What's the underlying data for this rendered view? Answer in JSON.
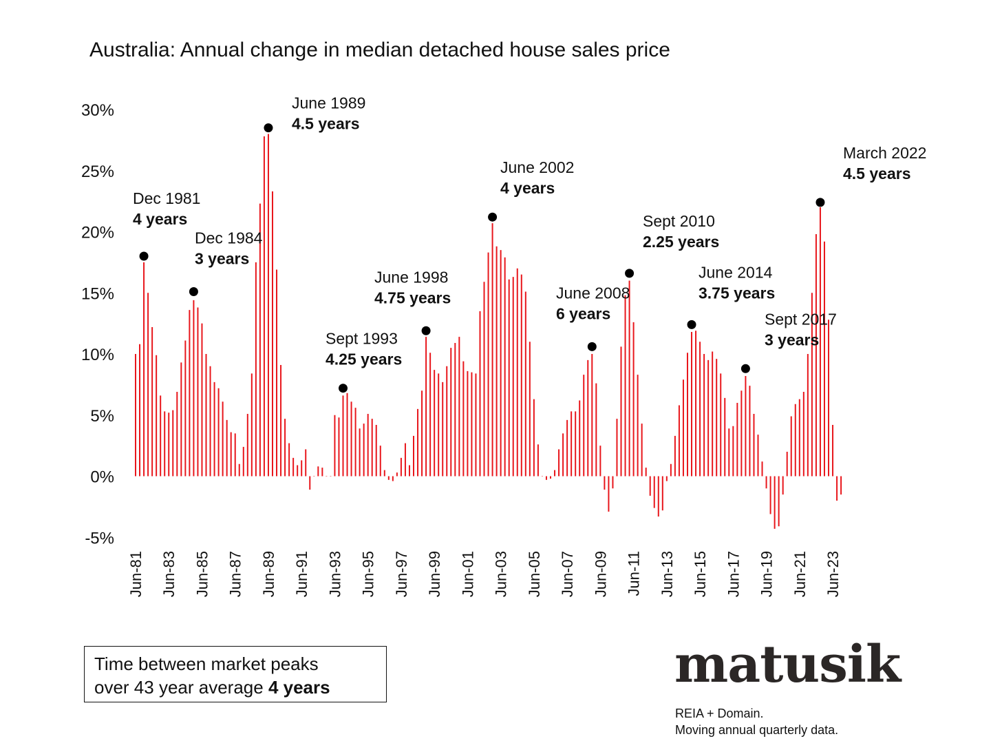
{
  "title": "Australia: Annual change in median detached house sales price",
  "note": {
    "line1": "Time between market peaks",
    "line2_prefix": "over 43 year average ",
    "line2_bold": "4 years"
  },
  "brand": "matusik",
  "source": {
    "line1": "REIA + Domain.",
    "line2": "Moving annual quarterly data."
  },
  "colors": {
    "bar": "#e8161b",
    "marker": "#000000",
    "text": "#111111"
  },
  "chart_data": {
    "type": "bar",
    "title": "Australia: Annual change in median detached house sales price",
    "ylim": [
      -5,
      30
    ],
    "yticks": [
      -5,
      0,
      5,
      10,
      15,
      20,
      25,
      30
    ],
    "ytick_labels": [
      "-5%",
      "0%",
      "5%",
      "10%",
      "15%",
      "20%",
      "25%",
      "30%"
    ],
    "xtick_labels": [
      "Jun-81",
      "Jun-83",
      "Jun-85",
      "Jun-87",
      "Jun-89",
      "Jun-91",
      "Jun-93",
      "Jun-95",
      "Jun-97",
      "Jun-99",
      "Jun-01",
      "Jun-03",
      "Jun-05",
      "Jun-07",
      "Jun-09",
      "Jun-11",
      "Jun-13",
      "Jun-15",
      "Jun-17",
      "Jun-19",
      "Jun-21",
      "Jun-23"
    ],
    "first_period": "Jun-81",
    "frequency": "quarterly",
    "grid": false,
    "values": [
      10.0,
      10.8,
      17.5,
      15.0,
      12.2,
      9.9,
      6.6,
      5.3,
      5.2,
      5.4,
      6.9,
      9.3,
      11.1,
      13.6,
      14.4,
      13.8,
      12.5,
      10.0,
      9.0,
      7.7,
      7.2,
      6.1,
      4.6,
      3.6,
      3.5,
      1.0,
      2.4,
      5.1,
      8.4,
      17.5,
      22.3,
      27.8,
      28.0,
      23.3,
      16.9,
      9.1,
      4.7,
      2.7,
      1.5,
      0.9,
      1.3,
      2.2,
      -1.1,
      0.0,
      0.8,
      0.7,
      0.0,
      0.0,
      5.0,
      4.8,
      6.6,
      6.8,
      6.1,
      5.6,
      3.9,
      4.3,
      5.1,
      4.7,
      4.2,
      2.5,
      0.5,
      -0.3,
      -0.4,
      0.3,
      1.5,
      2.7,
      0.9,
      3.3,
      5.5,
      7.0,
      11.4,
      10.1,
      8.7,
      8.4,
      7.7,
      9.0,
      10.5,
      10.9,
      11.4,
      9.4,
      8.6,
      8.5,
      8.4,
      13.5,
      15.9,
      18.3,
      20.7,
      18.8,
      18.5,
      17.9,
      16.1,
      16.3,
      17.0,
      16.5,
      15.1,
      11.0,
      6.3,
      2.6,
      0.0,
      -0.3,
      -0.2,
      0.5,
      2.2,
      3.5,
      4.6,
      5.3,
      5.3,
      6.2,
      8.3,
      9.5,
      10.0,
      7.6,
      2.5,
      -1.1,
      -2.9,
      -1.0,
      4.7,
      10.6,
      14.8,
      16.0,
      12.6,
      8.3,
      4.3,
      0.7,
      -1.6,
      -2.6,
      -3.3,
      -2.8,
      -0.4,
      1.0,
      3.3,
      5.8,
      7.9,
      10.1,
      11.8,
      11.9,
      11.0,
      10.0,
      9.5,
      10.2,
      9.6,
      8.4,
      6.4,
      3.9,
      4.1,
      6.0,
      7.0,
      8.2,
      7.4,
      5.1,
      3.4,
      1.2,
      -1.0,
      -3.1,
      -4.3,
      -4.1,
      -1.5,
      2.0,
      4.9,
      5.9,
      6.3,
      6.9,
      10.0,
      15.0,
      19.8,
      22.0,
      19.2,
      12.8,
      4.2,
      -2.0,
      -1.5
    ],
    "annotations": [
      {
        "index": 2,
        "value": 18.0,
        "date": "Dec 1981",
        "years": "4 years"
      },
      {
        "index": 14,
        "value": 15.1,
        "date": "Dec 1984",
        "years": "3 years"
      },
      {
        "index": 32,
        "value": 28.5,
        "date": "June 1989",
        "years": "4.5 years"
      },
      {
        "index": 50,
        "value": 7.2,
        "date": "Sept 1993",
        "years": "4.25 years"
      },
      {
        "index": 70,
        "value": 11.9,
        "date": "June 1998",
        "years": "4.75 years"
      },
      {
        "index": 86,
        "value": 21.2,
        "date": "June 2002",
        "years": "4 years"
      },
      {
        "index": 110,
        "value": 10.6,
        "date": "June 2008",
        "years": "6 years"
      },
      {
        "index": 119,
        "value": 16.6,
        "date": "Sept 2010",
        "years": "2.25 years"
      },
      {
        "index": 134,
        "value": 12.4,
        "date": "June 2014",
        "years": "3.75 years"
      },
      {
        "index": 147,
        "value": 8.8,
        "date": "Sept 2017",
        "years": "3 years"
      },
      {
        "index": 165,
        "value": 22.4,
        "date": "March 2022",
        "years": "4.5 years"
      }
    ]
  }
}
